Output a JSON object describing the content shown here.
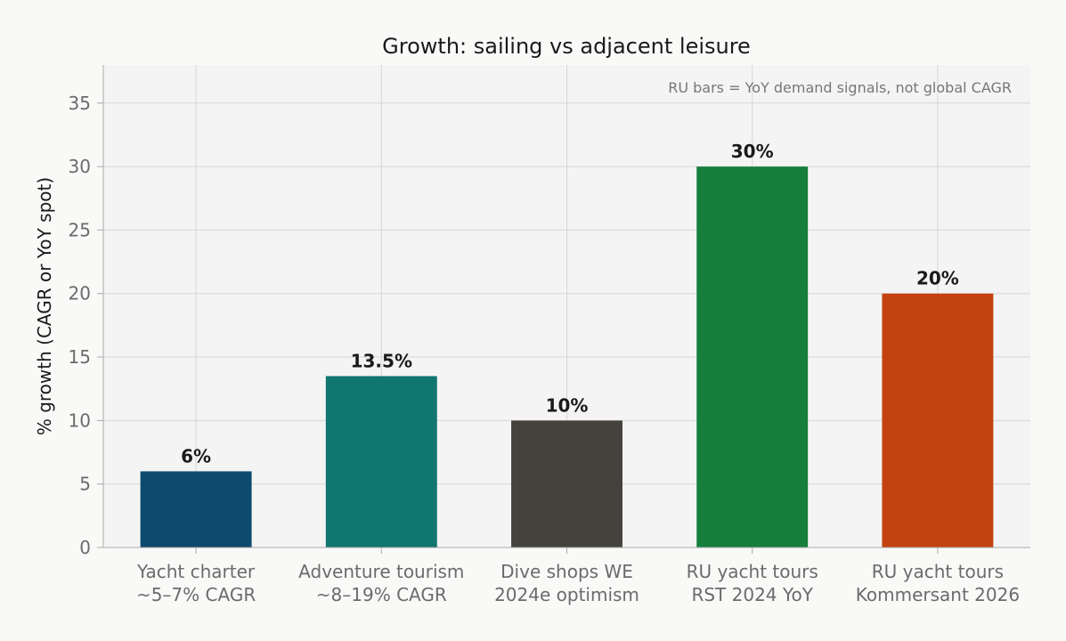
{
  "chart_data": {
    "type": "bar",
    "title": "Growth: sailing vs adjacent leisure",
    "xlabel": "",
    "ylabel": "% growth (CAGR or YoY spot)",
    "annotation": "RU bars = YoY demand signals, not global CAGR",
    "ylim": [
      0,
      38
    ],
    "yticks": [
      0,
      5,
      10,
      15,
      20,
      25,
      30,
      35
    ],
    "grid": true,
    "categories": [
      [
        "Yacht charter",
        "~5–7% CAGR"
      ],
      [
        "Adventure tourism",
        "~8–19% CAGR"
      ],
      [
        "Dive shops WE",
        "2024e optimism"
      ],
      [
        "RU yacht tours",
        "RST 2024 YoY"
      ],
      [
        "RU yacht tours",
        "Kommersant 2026"
      ]
    ],
    "values": [
      6,
      13.5,
      10,
      30,
      20
    ],
    "value_labels": [
      "6%",
      "13.5%",
      "10%",
      "30%",
      "20%"
    ],
    "colors": [
      "#0d4a6e",
      "#0f7770",
      "#45423d",
      "#167f3c",
      "#c4420f"
    ]
  }
}
